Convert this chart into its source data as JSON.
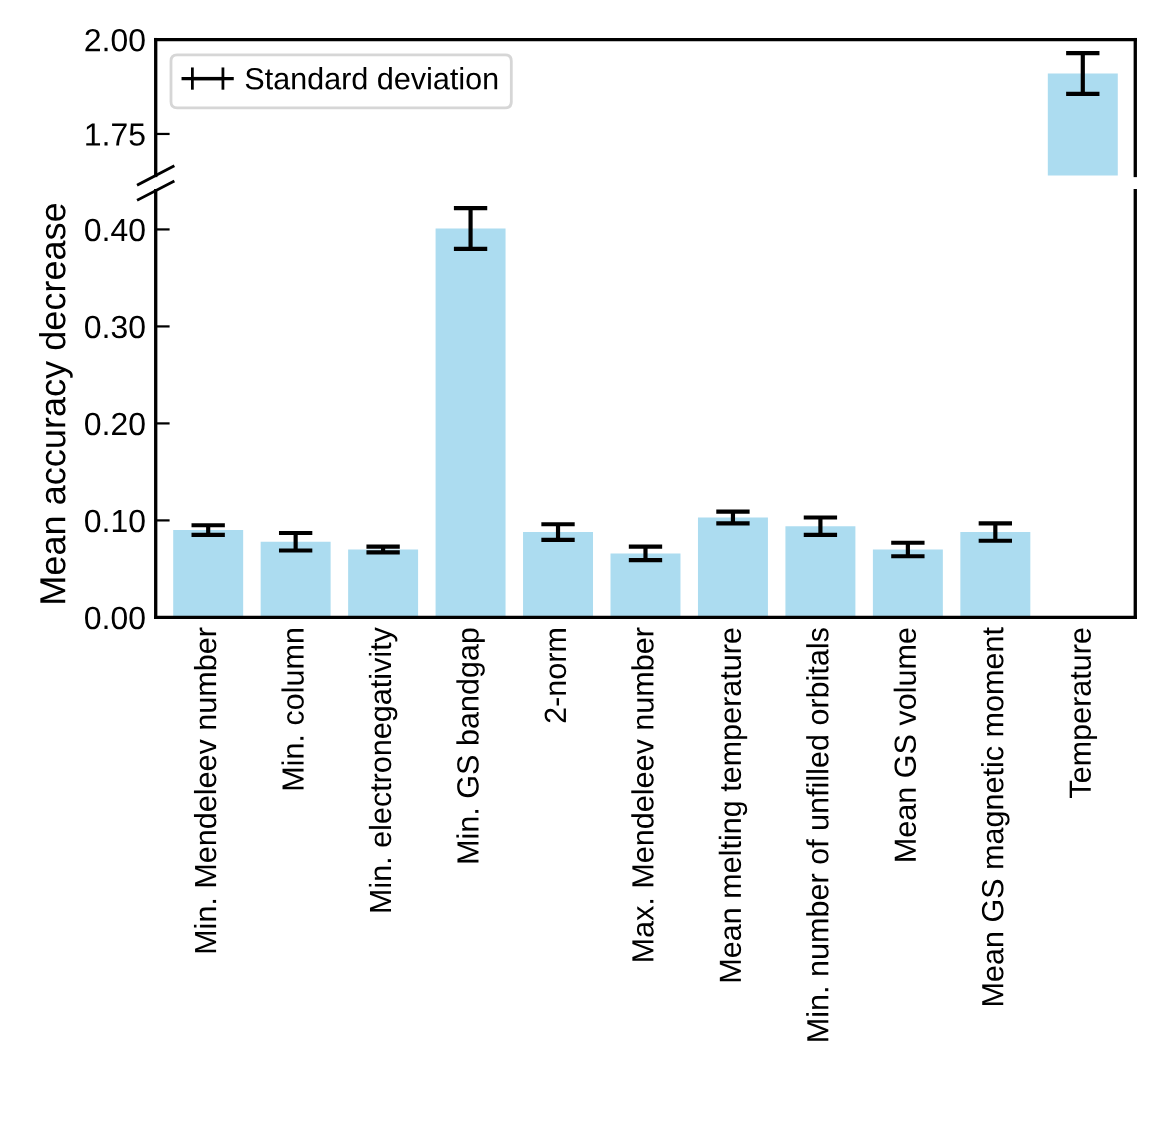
{
  "chart_data": [
    {
      "type": "bar",
      "categories": [
        null,
        null,
        null,
        null,
        null,
        null,
        null,
        null,
        null,
        null,
        null
      ],
      "series": [
        {
          "name": "Standard deviation",
          "color": "#acdcf0",
          "values": [
            null,
            null,
            null,
            null,
            null,
            null,
            null,
            null,
            null,
            null,
            1.91
          ],
          "errors": [
            null,
            null,
            null,
            null,
            null,
            null,
            null,
            null,
            null,
            null,
            0.054
          ]
        }
      ],
      "ylim": [
        1.64,
        2.0
      ],
      "yticks": [
        {
          "value": 1.75,
          "label": "1.75"
        },
        {
          "value": 2.0,
          "label": "2.00"
        }
      ],
      "tick_labels": "y",
      "legend": "top left",
      "grid": false
    },
    {
      "type": "bar",
      "categories": [
        "Min. Mendeleev number",
        "Min. column",
        "Min. electronegativity",
        "Min. GS bandgap",
        "2-norm",
        "Max. Mendeleev number",
        "Mean melting temperature",
        "Min. number of unfilled orbitals",
        "Mean GS volume",
        "Mean GS magnetic moment",
        "Temperature"
      ],
      "series": [
        {
          "color": "#acdcf0",
          "values": [
            0.09,
            0.078,
            0.07,
            0.401,
            0.088,
            0.066,
            0.103,
            0.094,
            0.07,
            0.088,
            null
          ],
          "errors": [
            0.005,
            0.009,
            0.003,
            0.021,
            0.008,
            0.007,
            0.006,
            0.009,
            0.007,
            0.009,
            null
          ]
        }
      ],
      "ylabel": "Mean accuracy decrease",
      "ylim": [
        0.0,
        0.44
      ],
      "yticks": [
        {
          "value": 0.0,
          "label": "0.00"
        },
        {
          "value": 0.1,
          "label": "0.10"
        },
        {
          "value": 0.2,
          "label": "0.20"
        },
        {
          "value": 0.3,
          "label": "0.30"
        },
        {
          "value": 0.4,
          "label": "0.40"
        }
      ],
      "grid": false
    }
  ]
}
